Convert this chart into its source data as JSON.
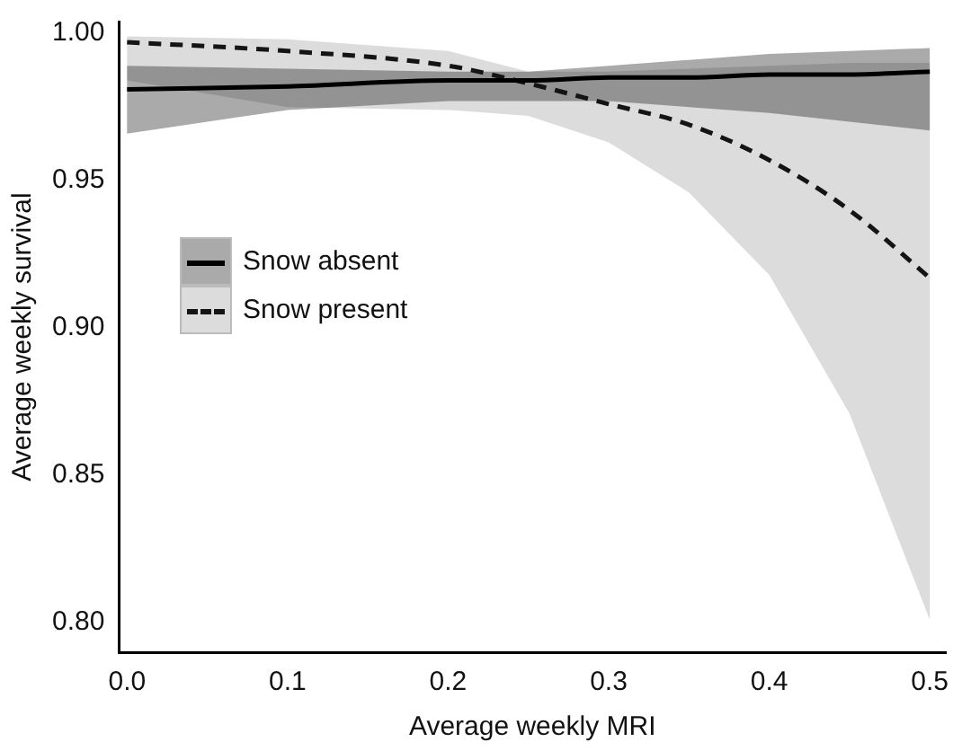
{
  "chart_data": {
    "type": "line",
    "xlabel": "Average weekly MRI",
    "ylabel": "Average weekly survival",
    "x": [
      0,
      0.1,
      0.2,
      0.25,
      0.3,
      0.35,
      0.4,
      0.45,
      0.5
    ],
    "xlim": [
      -0.005,
      0.51
    ],
    "xticks": [
      {
        "value": 0,
        "label": "0.0"
      },
      0.1,
      0.2,
      0.3,
      0.4,
      0.5
    ],
    "ylim": [
      0.79,
      1.004
    ],
    "yticks": [
      {
        "value": 0.8,
        "label": "0.80"
      },
      0.85,
      {
        "value": 0.9,
        "label": "0.90"
      },
      0.95,
      {
        "value": 1,
        "label": "1.00"
      }
    ],
    "series": [
      {
        "name": "Snow absent",
        "color": "#000000",
        "line_style": "solid",
        "values": [
          0.981,
          0.982,
          0.984,
          0.984,
          0.985,
          0.985,
          0.986,
          0.986,
          0.987
        ],
        "lower": [
          0.966,
          0.974,
          0.977,
          0.977,
          0.977,
          0.975,
          0.973,
          0.97,
          0.967
        ],
        "upper": [
          0.989,
          0.988,
          0.987,
          0.987,
          0.989,
          0.991,
          0.993,
          0.994,
          0.995
        ]
      },
      {
        "name": "Snow present",
        "color": "#141414",
        "line_style": "dashed",
        "values": [
          0.997,
          0.994,
          0.989,
          0.983,
          0.976,
          0.969,
          0.957,
          0.94,
          0.917
        ],
        "lower": [
          0.984,
          0.975,
          0.974,
          0.972,
          0.963,
          0.946,
          0.918,
          0.871,
          0.801
        ],
        "upper": [
          0.999,
          0.998,
          0.994,
          0.987,
          0.987,
          0.988,
          0.989,
          0.99,
          0.99
        ]
      }
    ],
    "legend": "left",
    "grid": false
  }
}
